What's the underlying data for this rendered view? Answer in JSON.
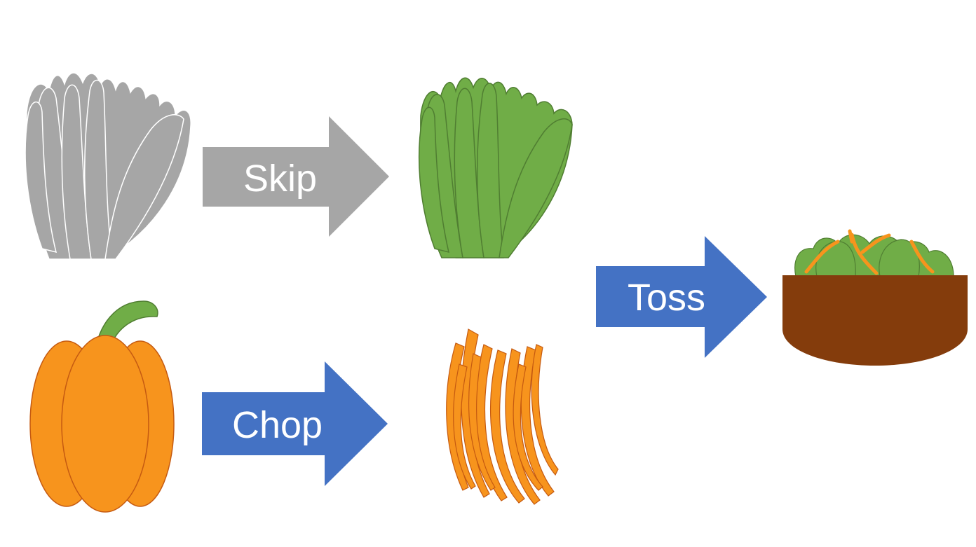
{
  "diagram": {
    "steps": [
      {
        "label": "Skip",
        "color": "#a6a6a6",
        "from": "lettuce-raw",
        "to": "lettuce-ready"
      },
      {
        "label": "Chop",
        "color": "#4472c4",
        "from": "pepper-whole",
        "to": "pepper-strips"
      },
      {
        "label": "Toss",
        "color": "#4472c4",
        "from": "combined",
        "to": "salad-bowl"
      }
    ]
  },
  "icons": {
    "lettuce_raw": "lettuce-icon",
    "lettuce_ready": "lettuce-icon",
    "pepper_whole": "bell-pepper-icon",
    "pepper_strips": "pepper-strips-icon",
    "salad": "salad-bowl-icon"
  },
  "colors": {
    "lettuce_gray": "#a6a6a6",
    "lettuce_green": "#70ad47",
    "lettuce_green_stroke": "#507e32",
    "pepper_orange": "#f7941d",
    "pepper_stroke": "#c55a11",
    "stem_green": "#70ad47",
    "bowl_brown": "#843c0c",
    "arrow_gray": "#a6a6a6",
    "arrow_blue": "#4472c4"
  }
}
